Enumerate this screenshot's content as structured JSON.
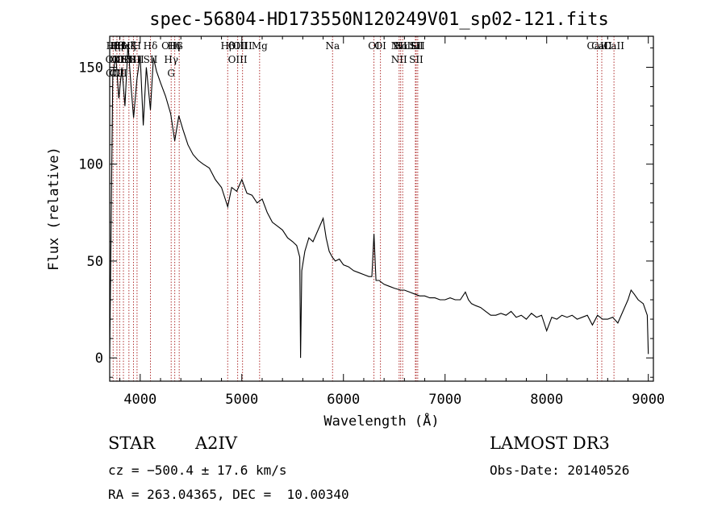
{
  "chart_data": {
    "type": "line",
    "title": "spec-56804-HD173550N120249V01_sp02-121.fits",
    "xlabel": "Wavelength (Å)",
    "ylabel": "Flux (relative)",
    "xlim": [
      3700,
      9050
    ],
    "ylim": [
      -12,
      166
    ],
    "xticks": [
      4000,
      5000,
      6000,
      7000,
      8000,
      9000
    ],
    "yticks": [
      0,
      50,
      100,
      150
    ],
    "grid": false,
    "series": [
      {
        "x": [
          3700,
          3730,
          3760,
          3790,
          3820,
          3850,
          3880,
          3910,
          3935,
          3968,
          4000,
          4030,
          4060,
          4101,
          4130,
          4160,
          4200,
          4250,
          4300,
          4340,
          4380,
          4420,
          4470,
          4520,
          4570,
          4620,
          4680,
          4740,
          4800,
          4861,
          4900,
          4950,
          5000,
          5050,
          5100,
          5150,
          5200,
          5250,
          5300,
          5350,
          5400,
          5450,
          5500,
          5540,
          5570,
          5578,
          5590,
          5620,
          5660,
          5700,
          5750,
          5800,
          5830,
          5860,
          5890,
          5920,
          5960,
          6000,
          6050,
          6100,
          6150,
          6200,
          6250,
          6280,
          6300,
          6320,
          6350,
          6400,
          6450,
          6500,
          6563,
          6600,
          6650,
          6700,
          6750,
          6800,
          6850,
          6900,
          6950,
          7000,
          7050,
          7100,
          7150,
          7200,
          7230,
          7260,
          7300,
          7350,
          7400,
          7450,
          7500,
          7550,
          7600,
          7650,
          7700,
          7750,
          7800,
          7850,
          7900,
          7950,
          8000,
          8050,
          8100,
          8150,
          8200,
          8250,
          8300,
          8350,
          8400,
          8450,
          8500,
          8550,
          8600,
          8650,
          8700,
          8750,
          8800,
          8830,
          8860,
          8900,
          8950,
          8990,
          9000
        ],
        "y": [
          0,
          146,
          156,
          134,
          150,
          130,
          162,
          140,
          124,
          144,
          156,
          120,
          150,
          128,
          155,
          148,
          142,
          135,
          126,
          112,
          125,
          118,
          110,
          105,
          102,
          100,
          98,
          92,
          88,
          78,
          88,
          86,
          92,
          85,
          84,
          80,
          82,
          75,
          70,
          68,
          66,
          62,
          60,
          58,
          52,
          0,
          45,
          55,
          62,
          60,
          66,
          72,
          62,
          55,
          52,
          50,
          51,
          48,
          47,
          45,
          44,
          43,
          42,
          42,
          64,
          40,
          40,
          38,
          37,
          36,
          35,
          35,
          34,
          33,
          32,
          32,
          31,
          31,
          30,
          30,
          31,
          30,
          30,
          34,
          30,
          28,
          27,
          26,
          24,
          22,
          22,
          23,
          22,
          24,
          21,
          22,
          20,
          23,
          21,
          22,
          14,
          21,
          20,
          22,
          21,
          22,
          20,
          21,
          22,
          17,
          22,
          20,
          20,
          21,
          18,
          24,
          30,
          35,
          33,
          30,
          28,
          22,
          2
        ]
      }
    ],
    "lines": [
      {
        "wl": 3734,
        "labels": [
          "Hβ",
          "OII",
          "CII"
        ]
      },
      {
        "wl": 3771,
        "labels": [
          "Hβ",
          "OII",
          "CII"
        ]
      },
      {
        "wl": 3798,
        "labels": [
          "Hβ",
          "OII",
          "CII"
        ]
      },
      {
        "wl": 3835,
        "labels": [
          "Hε",
          "OII"
        ]
      },
      {
        "wl": 3889,
        "labels": [
          "Hζ",
          "SII"
        ]
      },
      {
        "wl": 3934,
        "labels": [
          "K",
          "SII"
        ]
      },
      {
        "wl": 3969,
        "labels": [
          "H",
          "SII"
        ]
      },
      {
        "wl": 4101,
        "labels": [
          "Hδ",
          "SII"
        ]
      },
      {
        "wl": 4305,
        "labels": [
          "OIII",
          "Hγ",
          "G"
        ]
      },
      {
        "wl": 4340,
        "labels": [
          "Hγ"
        ]
      },
      {
        "wl": 4384,
        "labels": [
          "G"
        ]
      },
      {
        "wl": 4861,
        "labels": [
          "Hβ"
        ]
      },
      {
        "wl": 4959,
        "labels": [
          "OIII",
          "OIII"
        ]
      },
      {
        "wl": 5007,
        "labels": [
          "OIII"
        ]
      },
      {
        "wl": 5175,
        "labels": [
          "Mg"
        ]
      },
      {
        "wl": 5893,
        "labels": [
          "Na"
        ]
      },
      {
        "wl": 6300,
        "labels": [
          "OI"
        ]
      },
      {
        "wl": 6364,
        "labels": [
          "OI"
        ]
      },
      {
        "wl": 6548,
        "labels": [
          "NII",
          "NII"
        ]
      },
      {
        "wl": 6563,
        "labels": [
          "Hα"
        ]
      },
      {
        "wl": 6583,
        "labels": [
          "NII"
        ]
      },
      {
        "wl": 6708,
        "labels": [
          "Li"
        ]
      },
      {
        "wl": 6716,
        "labels": [
          "SII",
          "SII"
        ]
      },
      {
        "wl": 6731,
        "labels": [
          "SII"
        ]
      },
      {
        "wl": 8498,
        "labels": [
          "CaII"
        ]
      },
      {
        "wl": 8542,
        "labels": [
          "CaII"
        ]
      },
      {
        "wl": 8662,
        "labels": [
          "CaII"
        ]
      }
    ]
  },
  "labels": {
    "title": "spec-56804-HD173550N120249V01_sp02-121.fits",
    "xlabel": "Wavelength (Å)",
    "ylabel": "Flux (relative)",
    "line_labels": [
      "Hβ",
      "OII",
      "CII",
      "Hε",
      "Hζ",
      "SII",
      "K",
      "H",
      "Hδ",
      "OIII",
      "Hγ",
      "G",
      "Hβ",
      "OIII",
      "OIII",
      "Mg",
      "Na",
      "OI",
      "OI",
      "Hα",
      "SII",
      "NII",
      "Li",
      "NII",
      "SII",
      "CaII",
      "CaII",
      "CaII"
    ]
  },
  "info": {
    "class": "STAR",
    "subclass": "A2IV",
    "survey": "LAMOST DR3",
    "cz": "cz = −500.4 ± 17.6 km/s",
    "obs_date": "Obs-Date: 20140526",
    "radec": "RA = 263.04365, DEC =  10.00340"
  },
  "colors": {
    "spectrum": "#000000",
    "line_markers": "#b03030",
    "axes": "#000000"
  }
}
